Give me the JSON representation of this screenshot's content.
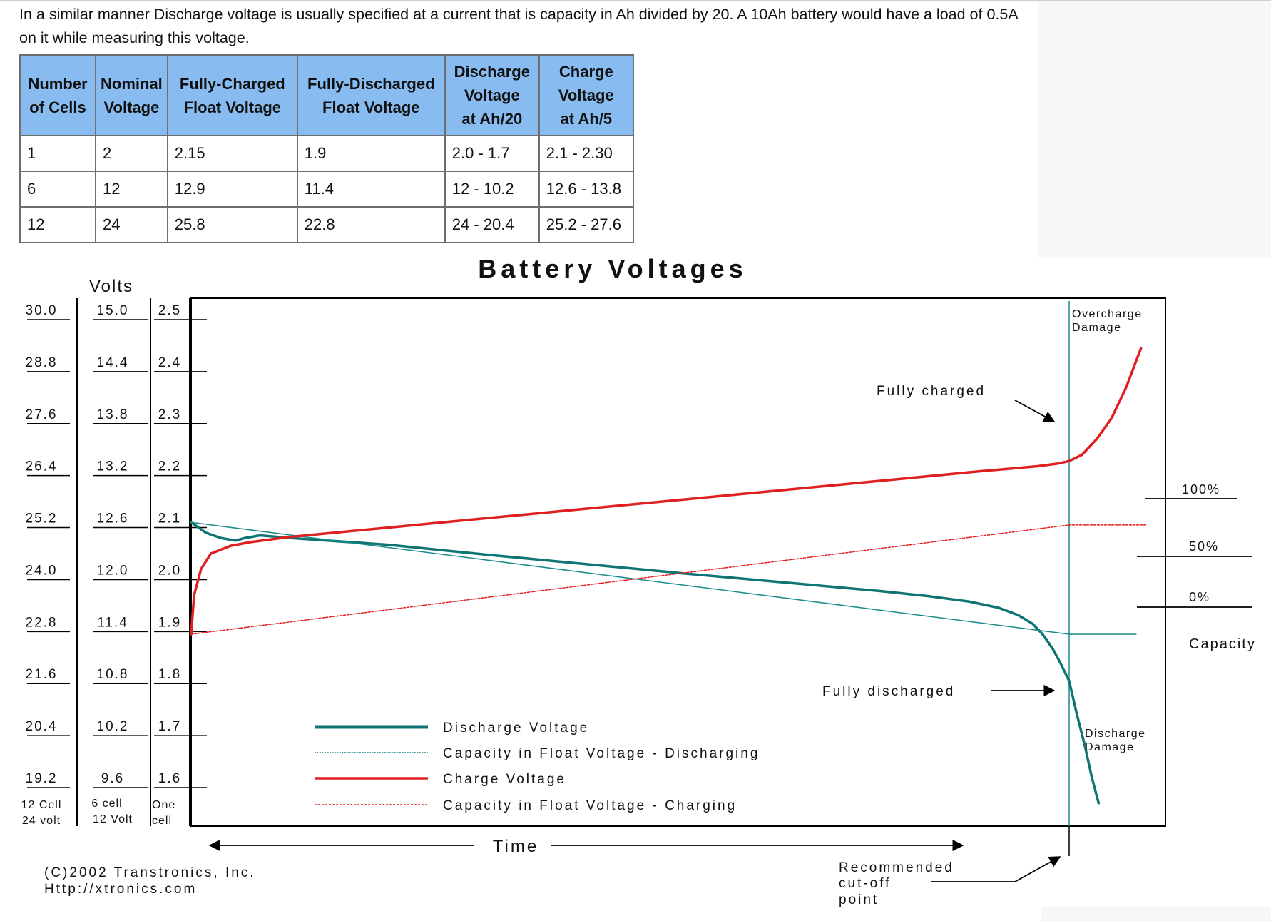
{
  "intro_text": "In a similar manner Discharge voltage is usually specified at a current that is capacity in Ah divided by 20. A 10Ah battery would have a load of 0.5A on it while measuring this voltage.",
  "table": {
    "headers": [
      [
        "Number",
        "of Cells"
      ],
      [
        "Nominal",
        "Voltage"
      ],
      [
        "Fully-Charged",
        "Float Voltage"
      ],
      [
        "Fully-Discharged",
        "Float Voltage"
      ],
      [
        "Discharge",
        "Voltage",
        "at Ah/20"
      ],
      [
        "Charge",
        "Voltage",
        "at Ah/5"
      ]
    ],
    "rows": [
      [
        "1",
        "2",
        "2.15",
        "1.9",
        "2.0 - 1.7",
        "2.1 - 2.30"
      ],
      [
        "6",
        "12",
        "12.9",
        "11.4",
        "12 - 10.2",
        "12.6 - 13.8"
      ],
      [
        "12",
        "24",
        "25.8",
        "22.8",
        "24 - 20.4",
        "25.2 - 27.6"
      ]
    ]
  },
  "chart_data": {
    "type": "line",
    "title": "Battery Voltages",
    "ylabel": "Volts",
    "xlabel": "Time",
    "y_scales": [
      {
        "footer": [
          "12 Cell",
          "24 volt"
        ],
        "ticks": [
          "30.0",
          "28.8",
          "27.6",
          "26.4",
          "25.2",
          "24.0",
          "22.8",
          "21.6",
          "20.4",
          "19.2"
        ]
      },
      {
        "footer": [
          "6 cell",
          "12 Volt"
        ],
        "ticks": [
          "15.0",
          "14.4",
          "13.8",
          "13.2",
          "12.6",
          "12.0",
          "11.4",
          "10.8",
          "10.2",
          "9.6"
        ]
      },
      {
        "footer": [
          "One",
          "cell"
        ],
        "ticks": [
          "2.5",
          "2.4",
          "2.3",
          "2.2",
          "2.1",
          "2.0",
          "1.9",
          "1.8",
          "1.7",
          "1.6"
        ]
      }
    ],
    "ylim_one_cell": [
      1.55,
      2.53
    ],
    "xlim": [
      0,
      100
    ],
    "cutoff_x": 89.2,
    "capacity_labels": [
      "100%",
      "50%",
      "0%"
    ],
    "capacity_title": "Capacity",
    "series": [
      {
        "name": "Discharge Voltage",
        "color": "#0f7474",
        "style": "solid-thick",
        "x": [
          0,
          1.5,
          3,
          4.5,
          5.5,
          7,
          10,
          20,
          30,
          40,
          50,
          60,
          70,
          75,
          79,
          82,
          84,
          85.5,
          86.5,
          87.5,
          88.3,
          89.2,
          90,
          90.8,
          91.5,
          92.2
        ],
        "y": [
          2.11,
          2.09,
          2.08,
          2.075,
          2.08,
          2.085,
          2.08,
          2.067,
          2.048,
          2.03,
          2.012,
          1.995,
          1.978,
          1.968,
          1.958,
          1.946,
          1.932,
          1.915,
          1.895,
          1.868,
          1.84,
          1.805,
          1.74,
          1.68,
          1.62,
          1.57
        ]
      },
      {
        "name": "Capacity in Float Voltage - Discharging",
        "color": "#1a8a8a",
        "style": "thin",
        "x": [
          0,
          89.2,
          96
        ],
        "y": [
          2.11,
          1.895,
          1.895
        ]
      },
      {
        "name": "Charge Voltage",
        "color": "#e02020",
        "style": "solid-thick",
        "x": [
          0,
          0.3,
          1,
          2,
          4,
          6,
          10,
          20,
          30,
          40,
          50,
          60,
          70,
          80,
          86,
          88,
          89.2,
          90.5,
          92,
          93.5,
          95,
          96.5
        ],
        "y": [
          1.895,
          1.97,
          2.02,
          2.05,
          2.065,
          2.072,
          2.082,
          2.1,
          2.118,
          2.136,
          2.154,
          2.172,
          2.19,
          2.208,
          2.218,
          2.223,
          2.228,
          2.24,
          2.27,
          2.31,
          2.37,
          2.445
        ]
      },
      {
        "name": "Capacity in Float Voltage - Charging",
        "color": "#e02020",
        "style": "dashed",
        "x": [
          0,
          89.2,
          97
        ],
        "y": [
          1.895,
          2.105,
          2.105
        ]
      }
    ],
    "annotations": [
      {
        "text": "Overcharge"
      },
      {
        "text": "Damage"
      },
      {
        "text": "Fully charged"
      },
      {
        "text": "Fully discharged"
      },
      {
        "text": "Discharge"
      },
      {
        "text": "Damage"
      },
      {
        "text": "Recommended"
      },
      {
        "text": "cut-off"
      },
      {
        "text": "point"
      }
    ],
    "copyright": [
      "(C)2002 Transtronics, Inc.",
      "Http://xtronics.com"
    ]
  }
}
